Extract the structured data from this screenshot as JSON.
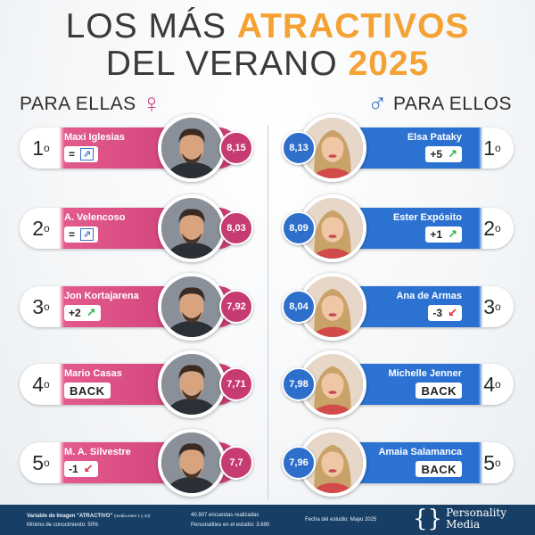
{
  "title": {
    "line1_prefix": "LOS MÁS ",
    "line1_highlight": "ATRACTIVOS",
    "line2_prefix": "DEL VERANO ",
    "line2_highlight": "2025"
  },
  "sections": {
    "left_label": "PARA ELLAS",
    "left_symbol": "♀",
    "right_label": "PARA ELLOS",
    "right_symbol": "♂"
  },
  "left_list": [
    {
      "rank": "1",
      "name": "Maxi Iglesias",
      "change": "=",
      "trend": "equal",
      "trend_glyph": "⇗",
      "score": "8,15",
      "photo_icon": "man-portrait-icon"
    },
    {
      "rank": "2",
      "name": "A. Velencoso",
      "change": "=",
      "trend": "equal",
      "trend_glyph": "⇗",
      "score": "8,03",
      "photo_icon": "man-portrait-icon"
    },
    {
      "rank": "3",
      "name": "Jon Kortajarena",
      "change": "+2",
      "trend": "up",
      "trend_glyph": "↗",
      "score": "7,92",
      "photo_icon": "man-portrait-icon"
    },
    {
      "rank": "4",
      "name": "Mario Casas",
      "change": "BACK",
      "trend": "back",
      "trend_glyph": "",
      "score": "7,71",
      "photo_icon": "man-portrait-icon"
    },
    {
      "rank": "5",
      "name": "M. A. Silvestre",
      "change": "-1",
      "trend": "down",
      "trend_glyph": "↙",
      "score": "7,7",
      "photo_icon": "man-portrait-icon"
    }
  ],
  "right_list": [
    {
      "rank": "1",
      "name": "Elsa Pataky",
      "change": "+5",
      "trend": "up",
      "trend_glyph": "↗",
      "score": "8,13",
      "photo_icon": "woman-portrait-icon"
    },
    {
      "rank": "2",
      "name": "Ester Expósito",
      "change": "+1",
      "trend": "up",
      "trend_glyph": "↗",
      "score": "8,09",
      "photo_icon": "woman-portrait-icon"
    },
    {
      "rank": "3",
      "name": "Ana de Armas",
      "change": "-3",
      "trend": "down",
      "trend_glyph": "↙",
      "score": "8,04",
      "photo_icon": "woman-portrait-icon"
    },
    {
      "rank": "4",
      "name": "Michelle Jenner",
      "change": "BACK",
      "trend": "back",
      "trend_glyph": "",
      "score": "7,98",
      "photo_icon": "woman-portrait-icon"
    },
    {
      "rank": "5",
      "name": "Amaia Salamanca",
      "change": "BACK",
      "trend": "back",
      "trend_glyph": "",
      "score": "7,96",
      "photo_icon": "woman-portrait-icon"
    }
  ],
  "rank_suffix": "o",
  "footer": {
    "variable_label": "Variable de Imagen \"ATRACTIVO\"",
    "variable_note": "(media entre 1 y 10)",
    "minimum": "Mínimo de conocimiento: 50%",
    "surveys": "40.907 encuestas realizadas",
    "personalities": "Personalities en el estudio: 3.690",
    "date": "Fecha del estudio:  Mayo 2025",
    "logo_line1": "Personality",
    "logo_line2": "Media"
  },
  "colors": {
    "title_highlight": "#f4a233",
    "pink_card": "#c93a73",
    "blue_card": "#2a6fd0",
    "footer_bg": "#173f66",
    "trend_up": "#2fae4e",
    "trend_down": "#d9283e"
  }
}
